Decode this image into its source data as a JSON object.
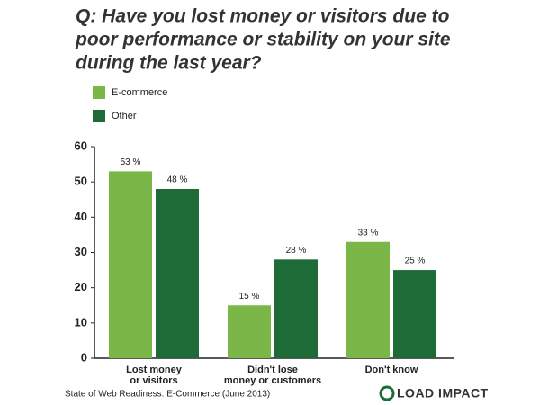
{
  "chart_data": {
    "type": "bar",
    "title": [
      "Q: Have you lost money or visitors due to",
      "poor performance or stability on your site",
      "during the last year?"
    ],
    "categories": [
      [
        "Lost money",
        "or visitors"
      ],
      [
        "Didn't lose",
        "money or customers"
      ],
      [
        "Don't know"
      ]
    ],
    "series": [
      {
        "name": "E-commerce",
        "color": "#7ab648",
        "values": [
          53,
          15,
          33
        ],
        "value_labels": [
          "53 %",
          "15 %",
          "33 %"
        ]
      },
      {
        "name": "Other",
        "color": "#1f6b37",
        "values": [
          48,
          28,
          25
        ],
        "value_labels": [
          "48 %",
          "28 %",
          "25 %"
        ]
      }
    ],
    "ylim": [
      0,
      60
    ],
    "yticks": [
      0,
      10,
      20,
      30,
      40,
      50,
      60
    ],
    "grid": false,
    "source": "State of Web Readiness: E-Commerce (June 2013)",
    "logo": "LOAD IMPACT"
  }
}
